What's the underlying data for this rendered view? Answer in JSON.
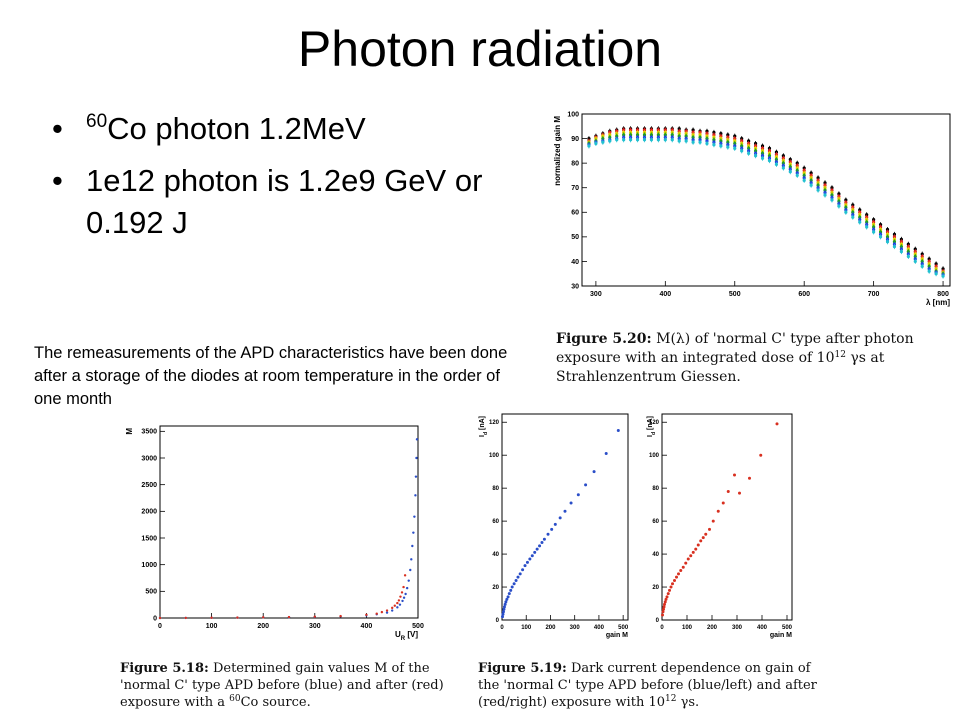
{
  "slide": {
    "title": "Photon radiation",
    "bullets": [
      {
        "sup": "60",
        "text": "Co photon 1.2MeV"
      },
      {
        "sup": "",
        "text": "1e12 photon is 1.2e9 GeV or 0.192 J"
      }
    ],
    "note": "The remeasurements of the APD characteristics have been done after a storage of the diodes at room temperature in the order of one month"
  },
  "figures": {
    "f520": {
      "label": "Figure 5.20:",
      "text_a": " M(λ) of 'normal C' type after photon exposure with an integrated dose of 10",
      "sup": "12",
      "text_b": " γs at Strahlenzentrum Giessen."
    },
    "f518": {
      "label": "Figure 5.18:",
      "text_a": " Determined gain values M of the 'normal C' type APD before (blue) and after (red) exposure with a ",
      "sup": "60",
      "text_b": "Co source."
    },
    "f519": {
      "label": "Figure 5.19:",
      "text_a": " Dark current dependence on gain of the 'normal C' type APD before (blue/left) and after (red/right) exposure with 10",
      "sup": "12",
      "text_b": " γs."
    }
  },
  "chart_data": [
    {
      "id": "fig520",
      "type": "scatter",
      "title": "",
      "xlabel": "λ [nm]",
      "ylabel": "normalized gain M",
      "xlim": [
        280,
        810
      ],
      "ylim": [
        30,
        100
      ],
      "xticks": [
        300,
        400,
        500,
        600,
        700,
        800
      ],
      "yticks": [
        30,
        40,
        50,
        60,
        70,
        80,
        90,
        100
      ],
      "x": [
        290,
        300,
        310,
        320,
        330,
        340,
        350,
        360,
        370,
        380,
        390,
        400,
        410,
        420,
        430,
        440,
        450,
        460,
        470,
        480,
        490,
        500,
        510,
        520,
        530,
        540,
        550,
        560,
        570,
        580,
        590,
        600,
        610,
        620,
        630,
        640,
        650,
        660,
        670,
        680,
        690,
        700,
        710,
        720,
        730,
        740,
        750,
        760,
        770,
        780,
        790,
        800
      ],
      "series": [
        {
          "color": "#000000",
          "values": [
            90,
            91,
            92,
            93,
            93.5,
            94,
            94,
            94,
            94,
            94,
            94,
            94,
            94,
            94,
            93.5,
            93.5,
            93,
            93,
            92.5,
            92,
            91.5,
            91,
            90,
            89,
            88,
            87,
            86,
            84.5,
            83,
            81.5,
            80,
            78,
            76,
            74,
            72,
            70,
            67.5,
            65,
            63,
            61,
            59,
            57,
            55,
            53,
            51,
            49,
            47,
            45,
            43,
            41,
            39,
            37
          ]
        },
        {
          "color": "#e02020",
          "values": [
            89,
            90.5,
            91.5,
            92.5,
            93,
            93.5,
            93.5,
            93.5,
            93.5,
            93.5,
            93.5,
            93.5,
            93.5,
            93,
            93,
            92.5,
            92.5,
            92,
            91.5,
            91,
            90.5,
            90,
            89,
            88,
            87,
            86,
            85,
            83.5,
            82,
            80.5,
            79,
            77,
            75,
            73,
            71,
            69,
            66.5,
            64,
            62,
            60,
            58,
            56,
            54,
            52,
            50,
            48,
            46,
            44,
            42,
            40,
            38,
            36
          ]
        },
        {
          "color": "#e0d000",
          "values": [
            88.5,
            90,
            91,
            91.5,
            92,
            92.5,
            92.5,
            92.5,
            92.5,
            92.5,
            92.5,
            92.5,
            92.5,
            92,
            92,
            91.5,
            91.5,
            91,
            90.5,
            90,
            89.5,
            89,
            88,
            87,
            86,
            85,
            84,
            82.5,
            81,
            79.5,
            78,
            76,
            74,
            72,
            70,
            68,
            65.5,
            63,
            61,
            59,
            57,
            55,
            53,
            51,
            49,
            47,
            45,
            43,
            41,
            39,
            37,
            35.5
          ]
        },
        {
          "color": "#20a020",
          "values": [
            88,
            89,
            90,
            90.5,
            91,
            91.5,
            91.5,
            91.5,
            91.5,
            91.5,
            91.5,
            91.5,
            91.5,
            91,
            91,
            90.5,
            90.5,
            90,
            89.5,
            89,
            88.5,
            88,
            87,
            86,
            85,
            84,
            83,
            81.5,
            80,
            78.5,
            77,
            75,
            73,
            71,
            69,
            67,
            64.5,
            62,
            60,
            58,
            56,
            54,
            52,
            50,
            48,
            46,
            44,
            42,
            40,
            38,
            36,
            35
          ]
        },
        {
          "color": "#2040e0",
          "values": [
            87.5,
            88.5,
            89,
            89.5,
            90,
            90.5,
            90.5,
            90.5,
            90.5,
            90.5,
            90.5,
            90.5,
            90.5,
            90,
            90,
            89.5,
            89.5,
            89,
            88.5,
            88,
            87.5,
            87,
            86,
            85,
            84,
            83,
            82,
            80.5,
            79,
            77.5,
            76,
            74,
            72,
            70,
            68,
            66,
            63.5,
            61,
            59,
            57,
            55,
            53,
            51,
            49,
            47,
            45,
            43,
            41,
            39,
            37,
            35.5,
            34.5
          ]
        },
        {
          "color": "#20c0d0",
          "values": [
            87,
            88,
            88.5,
            89,
            89.5,
            89.5,
            89.5,
            89.5,
            89.5,
            89.5,
            89.5,
            89.5,
            89.5,
            89,
            89,
            88.5,
            88.5,
            88,
            87.5,
            87,
            86.5,
            86,
            85,
            84,
            83,
            82,
            81,
            79.5,
            78,
            76.5,
            75,
            73,
            71,
            69,
            67,
            65,
            62.5,
            60,
            58,
            56,
            54,
            52,
            50,
            48,
            46,
            44,
            42,
            40,
            38,
            36,
            35,
            34
          ]
        }
      ]
    },
    {
      "id": "fig518",
      "type": "scatter",
      "title": "",
      "xlabel": "U",
      "xlabel_sub": "R",
      "xlabel_unit": " [V]",
      "ylabel": "M",
      "xlim": [
        0,
        500
      ],
      "ylim": [
        0,
        3600
      ],
      "xticks": [
        0,
        100,
        200,
        300,
        400,
        500
      ],
      "yticks": [
        0,
        500,
        1000,
        1500,
        2000,
        2500,
        3000,
        3500
      ],
      "series": [
        {
          "name": "before",
          "color": "#2a4ec8",
          "x": [
            0,
            50,
            100,
            150,
            200,
            250,
            300,
            350,
            400,
            420,
            440,
            450,
            460,
            465,
            470,
            473,
            476,
            479,
            482,
            485,
            487,
            489,
            491,
            493,
            495,
            496,
            497,
            498
          ],
          "y": [
            0,
            2,
            4,
            7,
            11,
            15,
            20,
            30,
            50,
            70,
            100,
            140,
            200,
            250,
            320,
            380,
            450,
            560,
            700,
            900,
            1100,
            1350,
            1600,
            1900,
            2300,
            2650,
            3000,
            3350
          ]
        },
        {
          "name": "after",
          "color": "#d83020",
          "x": [
            0,
            50,
            100,
            150,
            200,
            250,
            300,
            350,
            400,
            420,
            430,
            440,
            450,
            455,
            460,
            463,
            466,
            469,
            472,
            475
          ],
          "y": [
            0,
            2,
            5,
            8,
            13,
            18,
            25,
            35,
            60,
            80,
            110,
            140,
            190,
            230,
            280,
            330,
            400,
            480,
            580,
            800
          ]
        }
      ]
    },
    {
      "id": "fig519_before",
      "type": "scatter",
      "xlabel": "gain M",
      "ylabel": "I",
      "ylabel_sub": "d",
      "ylabel_unit": " [nA]",
      "xlim": [
        0,
        520
      ],
      "ylim": [
        0,
        125
      ],
      "xticks": [
        0,
        100,
        200,
        300,
        400,
        500
      ],
      "yticks": [
        0,
        20,
        40,
        60,
        80,
        100,
        120
      ],
      "series": [
        {
          "name": "before",
          "color": "#2a4ec8",
          "x": [
            2,
            4,
            6,
            8,
            10,
            13,
            16,
            20,
            25,
            30,
            36,
            42,
            50,
            58,
            66,
            75,
            85,
            95,
            105,
            115,
            125,
            135,
            145,
            155,
            165,
            175,
            190,
            205,
            220,
            240,
            260,
            285,
            315,
            345,
            380,
            430,
            480
          ],
          "y": [
            2,
            3.5,
            5,
            6.5,
            8,
            9.5,
            11,
            12.5,
            14,
            16,
            18,
            20,
            22,
            24,
            26,
            28,
            30.5,
            33,
            35,
            37,
            39,
            41,
            43,
            45,
            47,
            49,
            52,
            55,
            58,
            62,
            66,
            71,
            76,
            82,
            90,
            101,
            115
          ]
        }
      ]
    },
    {
      "id": "fig519_after",
      "type": "scatter",
      "xlabel": "gain M",
      "ylabel": "I",
      "ylabel_sub": "d",
      "ylabel_unit": " [nA]",
      "xlim": [
        0,
        520
      ],
      "ylim": [
        0,
        125
      ],
      "xticks": [
        0,
        100,
        200,
        300,
        400,
        500
      ],
      "yticks": [
        0,
        20,
        40,
        60,
        80,
        100,
        120
      ],
      "series": [
        {
          "name": "after",
          "color": "#d83020",
          "x": [
            2,
            4,
            6,
            8,
            10,
            13,
            16,
            20,
            25,
            30,
            36,
            42,
            50,
            58,
            66,
            75,
            85,
            95,
            105,
            115,
            125,
            135,
            145,
            155,
            165,
            175,
            190,
            205,
            225,
            245,
            265,
            290,
            310,
            350,
            395,
            460
          ],
          "y": [
            3,
            5,
            6.5,
            8,
            9.5,
            11,
            12.5,
            14,
            16,
            18,
            20,
            22,
            24,
            26,
            28,
            30,
            32,
            34.5,
            37,
            39,
            41,
            43,
            45.5,
            48,
            50,
            52,
            55,
            60,
            66,
            71,
            78,
            88,
            77,
            86,
            100,
            119
          ]
        }
      ]
    }
  ]
}
